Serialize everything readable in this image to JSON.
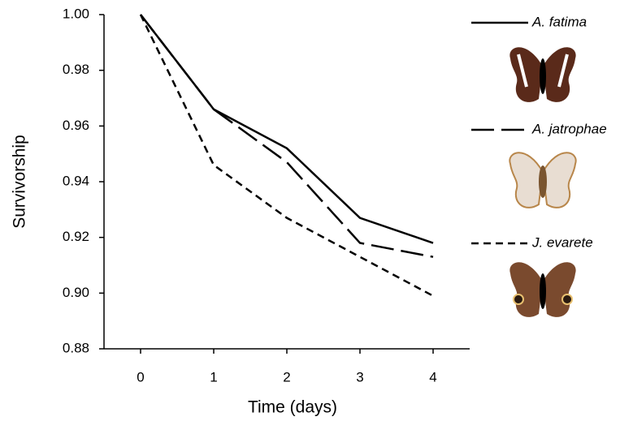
{
  "chart_data": {
    "type": "line",
    "x": [
      0,
      1,
      2,
      3,
      4
    ],
    "xlabel": "Time (days)",
    "ylabel": "Survivorship",
    "xlim": [
      -0.5,
      4.5
    ],
    "xticks": [
      0,
      1,
      2,
      3,
      4
    ],
    "ylim": [
      0.88,
      1.0
    ],
    "yticks": [
      {
        "value": 0.88,
        "label": "0.88"
      },
      {
        "value": 0.9,
        "label": "0.90"
      },
      {
        "value": 0.92,
        "label": "0.92"
      },
      {
        "value": 0.94,
        "label": "0.94"
      },
      {
        "value": 0.96,
        "label": "0.96"
      },
      {
        "value": 0.98,
        "label": "0.98"
      },
      {
        "value": 1.0,
        "label": "1.00"
      }
    ],
    "grid": false,
    "legend": "right",
    "series": [
      {
        "name": "A. fatima",
        "color": "#000000",
        "dash": "solid",
        "values": [
          1.0,
          0.966,
          0.952,
          0.927,
          0.918
        ]
      },
      {
        "name": "A. jatrophae",
        "color": "#000000",
        "dash": "long-dash",
        "values": [
          1.0,
          0.966,
          0.947,
          0.918,
          0.913
        ]
      },
      {
        "name": "J. evarete",
        "color": "#000000",
        "dash": "dash",
        "values": [
          1.0,
          0.946,
          0.927,
          0.913,
          0.899
        ]
      }
    ]
  }
}
